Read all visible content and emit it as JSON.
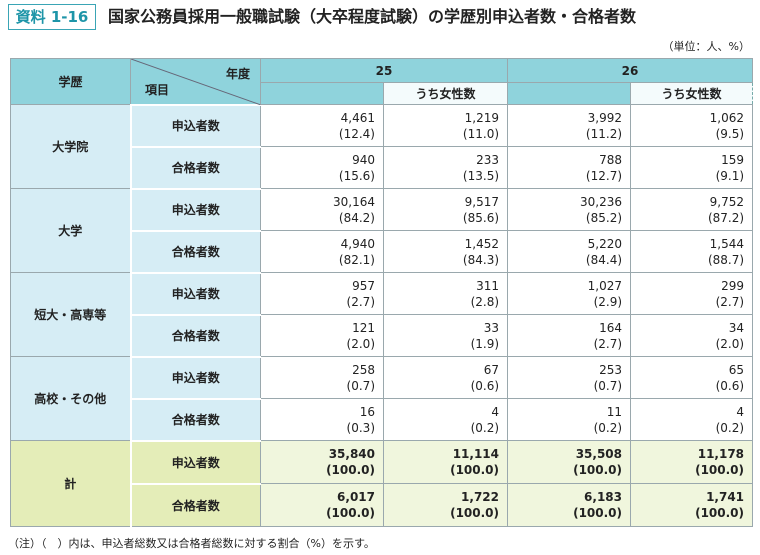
{
  "header": {
    "badge": "資料 1-16",
    "title": "国家公務員採用一般職試験（大卒程度試験）の学歴別申込者数・合格者数",
    "unit": "（単位：人、%）"
  },
  "table": {
    "row_header": "学歴",
    "corner_top": "年度",
    "corner_bottom": "項目",
    "years": [
      "25",
      "26"
    ],
    "subcolumn": "うち女性数",
    "groups": [
      {
        "label": "大学院",
        "rows": [
          {
            "item": "申込者数",
            "cells": [
              {
                "count": "4,461",
                "share": "(12.4)"
              },
              {
                "count": "1,219",
                "share": "(11.0)"
              },
              {
                "count": "3,992",
                "share": "(11.2)"
              },
              {
                "count": "1,062",
                "share": "(9.5)"
              }
            ]
          },
          {
            "item": "合格者数",
            "cells": [
              {
                "count": "940",
                "share": "(15.6)"
              },
              {
                "count": "233",
                "share": "(13.5)"
              },
              {
                "count": "788",
                "share": "(12.7)"
              },
              {
                "count": "159",
                "share": "(9.1)"
              }
            ]
          }
        ]
      },
      {
        "label": "大学",
        "rows": [
          {
            "item": "申込者数",
            "cells": [
              {
                "count": "30,164",
                "share": "(84.2)"
              },
              {
                "count": "9,517",
                "share": "(85.6)"
              },
              {
                "count": "30,236",
                "share": "(85.2)"
              },
              {
                "count": "9,752",
                "share": "(87.2)"
              }
            ]
          },
          {
            "item": "合格者数",
            "cells": [
              {
                "count": "4,940",
                "share": "(82.1)"
              },
              {
                "count": "1,452",
                "share": "(84.3)"
              },
              {
                "count": "5,220",
                "share": "(84.4)"
              },
              {
                "count": "1,544",
                "share": "(88.7)"
              }
            ]
          }
        ]
      },
      {
        "label": "短大・高専等",
        "rows": [
          {
            "item": "申込者数",
            "cells": [
              {
                "count": "957",
                "share": "(2.7)"
              },
              {
                "count": "311",
                "share": "(2.8)"
              },
              {
                "count": "1,027",
                "share": "(2.9)"
              },
              {
                "count": "299",
                "share": "(2.7)"
              }
            ]
          },
          {
            "item": "合格者数",
            "cells": [
              {
                "count": "121",
                "share": "(2.0)"
              },
              {
                "count": "33",
                "share": "(1.9)"
              },
              {
                "count": "164",
                "share": "(2.7)"
              },
              {
                "count": "34",
                "share": "(2.0)"
              }
            ]
          }
        ]
      },
      {
        "label": "高校・その他",
        "rows": [
          {
            "item": "申込者数",
            "cells": [
              {
                "count": "258",
                "share": "(0.7)"
              },
              {
                "count": "67",
                "share": "(0.6)"
              },
              {
                "count": "253",
                "share": "(0.7)"
              },
              {
                "count": "65",
                "share": "(0.6)"
              }
            ]
          },
          {
            "item": "合格者数",
            "cells": [
              {
                "count": "16",
                "share": "(0.3)"
              },
              {
                "count": "4",
                "share": "(0.2)"
              },
              {
                "count": "11",
                "share": "(0.2)"
              },
              {
                "count": "4",
                "share": "(0.2)"
              }
            ]
          }
        ]
      },
      {
        "label": "計",
        "rows": [
          {
            "item": "申込者数",
            "cells": [
              {
                "count": "35,840",
                "share": "(100.0)"
              },
              {
                "count": "11,114",
                "share": "(100.0)"
              },
              {
                "count": "35,508",
                "share": "(100.0)"
              },
              {
                "count": "11,178",
                "share": "(100.0)"
              }
            ]
          },
          {
            "item": "合格者数",
            "cells": [
              {
                "count": "6,017",
                "share": "(100.0)"
              },
              {
                "count": "1,722",
                "share": "(100.0)"
              },
              {
                "count": "6,183",
                "share": "(100.0)"
              },
              {
                "count": "1,741",
                "share": "(100.0)"
              }
            ]
          }
        ]
      }
    ]
  },
  "note": "（注）（　）内は、申込者総数又は合格者総数に対する割合（%）を示す。"
}
